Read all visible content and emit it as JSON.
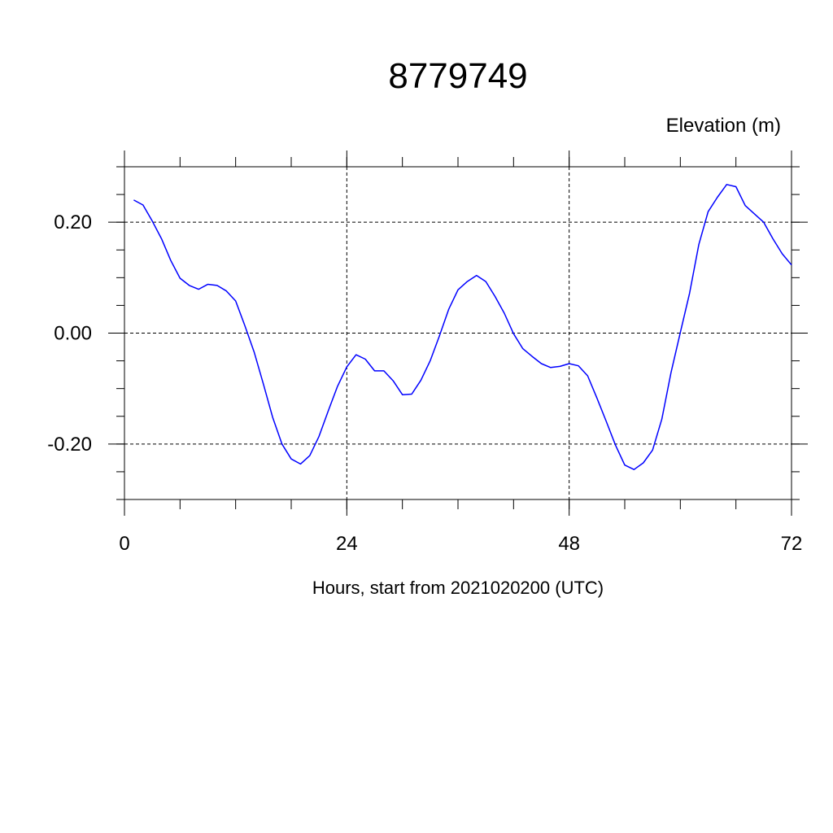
{
  "chart_data": {
    "type": "line",
    "title": "8779749",
    "xlabel": "Hours, start from 2021020200 (UTC)",
    "ylabel": "Elevation (m)",
    "xlim": [
      0,
      72
    ],
    "ylim": [
      -0.3,
      0.3
    ],
    "x_ticks": [
      0,
      24,
      48,
      72
    ],
    "x_tick_labels": [
      "0",
      "24",
      "48",
      "72"
    ],
    "y_ticks": [
      -0.2,
      0.0,
      0.2
    ],
    "y_tick_labels": [
      "-0.20",
      "0.00",
      "0.20"
    ],
    "grid": true,
    "series": [
      {
        "color": "#0000ff",
        "x": [
          1,
          2,
          3,
          4,
          5,
          6,
          7,
          8,
          9,
          10,
          11,
          12,
          13,
          14,
          15,
          16,
          17,
          18,
          19,
          20,
          21,
          22,
          23,
          24,
          25,
          26,
          27,
          28,
          29,
          30,
          31,
          32,
          33,
          34,
          35,
          36,
          37,
          38,
          39,
          40,
          41,
          42,
          43,
          44,
          45,
          46,
          47,
          48,
          49,
          50,
          51,
          52,
          53,
          54,
          55,
          56,
          57,
          58,
          59,
          60,
          61,
          62,
          63,
          64,
          65,
          66,
          67,
          68,
          69,
          70,
          71,
          72
        ],
        "y": [
          0.24,
          0.231,
          0.202,
          0.17,
          0.131,
          0.099,
          0.086,
          0.079,
          0.088,
          0.086,
          0.076,
          0.058,
          0.013,
          -0.034,
          -0.092,
          -0.152,
          -0.2,
          -0.227,
          -0.236,
          -0.221,
          -0.186,
          -0.14,
          -0.096,
          -0.061,
          -0.039,
          -0.047,
          -0.068,
          -0.068,
          -0.086,
          -0.111,
          -0.11,
          -0.085,
          -0.05,
          -0.005,
          0.043,
          0.078,
          0.093,
          0.104,
          0.093,
          0.066,
          0.036,
          -0.001,
          -0.028,
          -0.042,
          -0.055,
          -0.062,
          -0.06,
          -0.055,
          -0.059,
          -0.077,
          -0.117,
          -0.159,
          -0.202,
          -0.238,
          -0.246,
          -0.234,
          -0.211,
          -0.155,
          -0.071,
          0.001,
          0.072,
          0.16,
          0.219,
          0.245,
          0.268,
          0.264,
          0.23,
          0.215,
          0.2,
          0.17,
          0.143,
          0.123
        ]
      }
    ]
  }
}
